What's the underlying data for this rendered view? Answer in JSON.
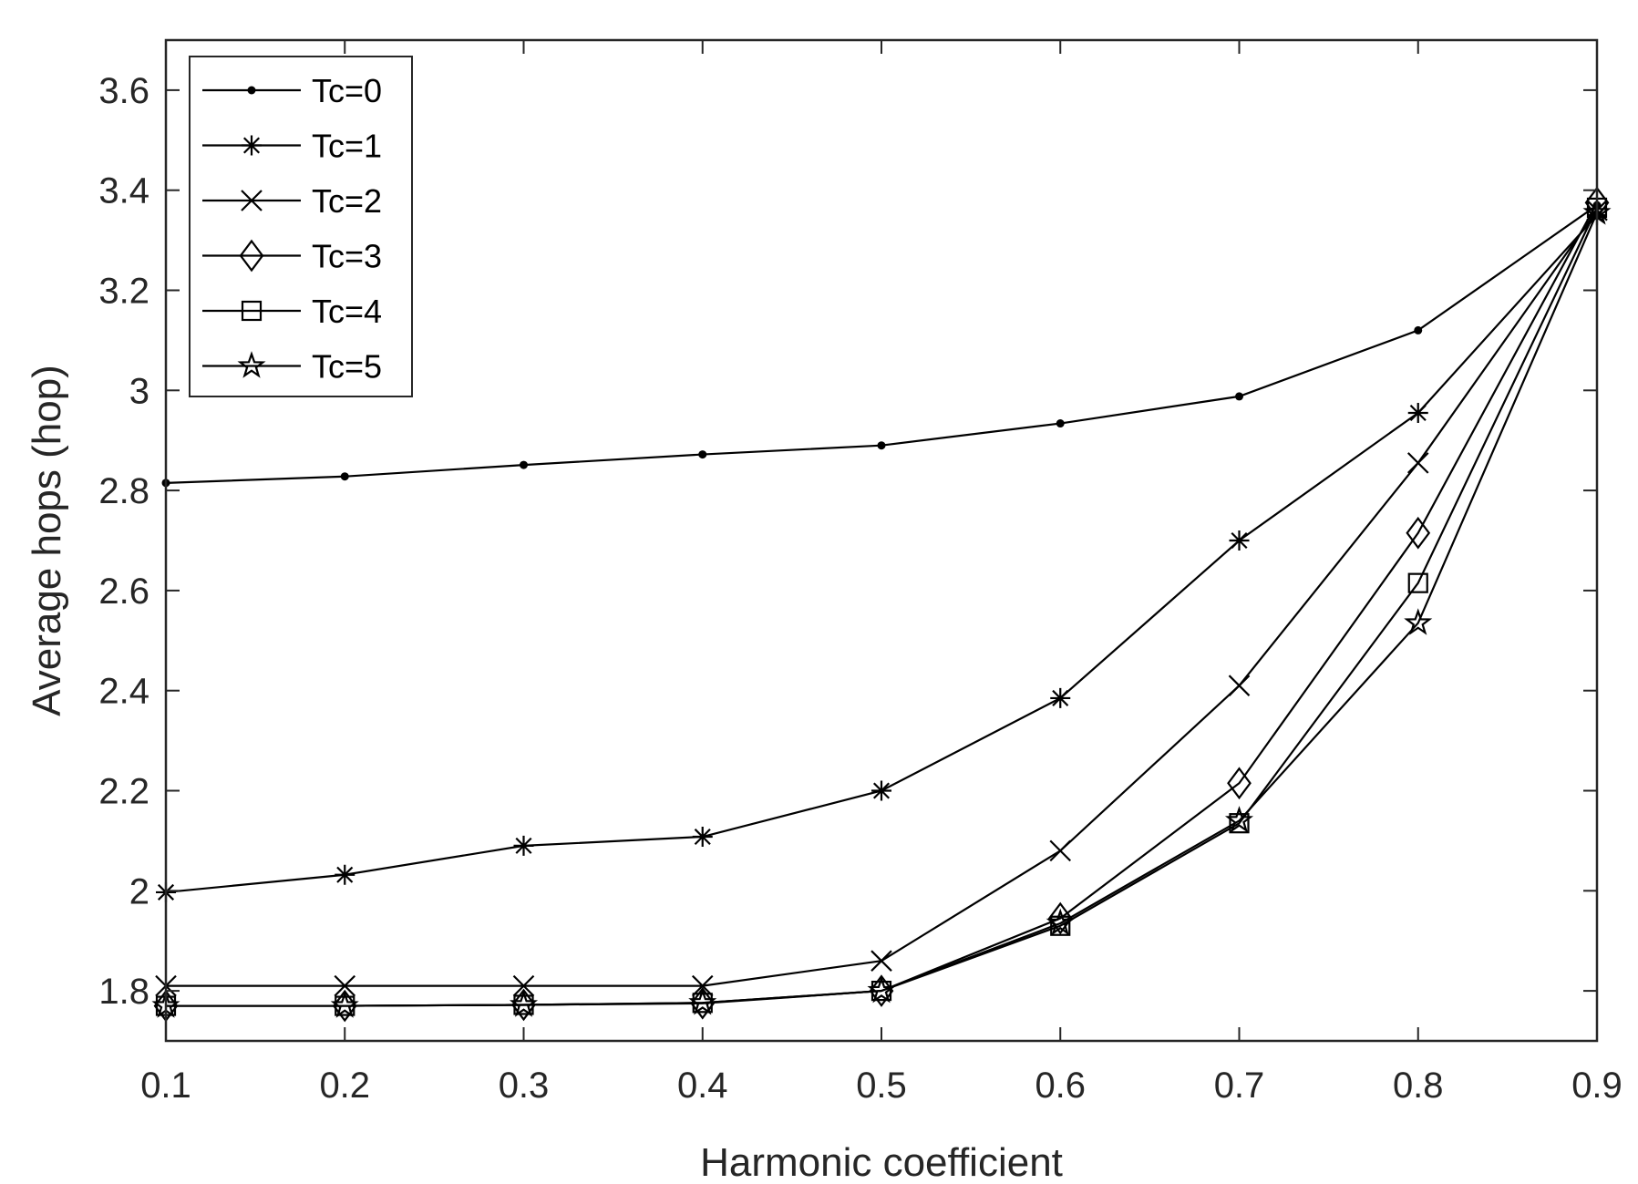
{
  "chart_data": {
    "type": "line",
    "title": "",
    "xlabel": "Harmonic coefficient",
    "ylabel": "Average hops (hop)",
    "x": [
      0.1,
      0.2,
      0.3,
      0.4,
      0.5,
      0.6,
      0.7,
      0.8,
      0.9
    ],
    "x_tick_labels": [
      "0.1",
      "0.2",
      "0.3",
      "0.4",
      "0.5",
      "0.6",
      "0.7",
      "0.8",
      "0.9"
    ],
    "y_ticks": [
      1.8,
      2,
      2.2,
      2.4,
      2.6,
      2.8,
      3,
      3.2,
      3.4,
      3.6
    ],
    "y_tick_labels": [
      "1.8",
      "2",
      "2.2",
      "2.4",
      "2.6",
      "2.8",
      "3",
      "3.2",
      "3.4",
      "3.6"
    ],
    "xlim": [
      0.1,
      0.9
    ],
    "ylim": [
      1.7,
      3.7
    ],
    "grid": false,
    "legend_position": "top-left",
    "line_color": "#000000",
    "series": [
      {
        "name": "Tc=0",
        "marker": "dot",
        "values": [
          2.815,
          2.828,
          2.851,
          2.872,
          2.89,
          2.934,
          2.988,
          3.12,
          3.37
        ]
      },
      {
        "name": "Tc=1",
        "marker": "asterisk",
        "values": [
          1.997,
          2.032,
          2.09,
          2.108,
          2.2,
          2.385,
          2.7,
          2.955,
          3.35
        ]
      },
      {
        "name": "Tc=2",
        "marker": "x",
        "values": [
          1.81,
          1.81,
          1.81,
          1.81,
          1.86,
          2.08,
          2.41,
          2.855,
          3.36
        ]
      },
      {
        "name": "Tc=3",
        "marker": "diamond",
        "values": [
          1.77,
          1.77,
          1.772,
          1.775,
          1.8,
          1.945,
          2.215,
          2.715,
          3.375
        ]
      },
      {
        "name": "Tc=4",
        "marker": "square",
        "values": [
          1.77,
          1.77,
          1.772,
          1.776,
          1.8,
          1.93,
          2.135,
          2.615,
          3.365
        ]
      },
      {
        "name": "Tc=5",
        "marker": "star",
        "values": [
          1.77,
          1.77,
          1.772,
          1.776,
          1.8,
          1.935,
          2.14,
          2.535,
          3.355
        ]
      }
    ]
  }
}
